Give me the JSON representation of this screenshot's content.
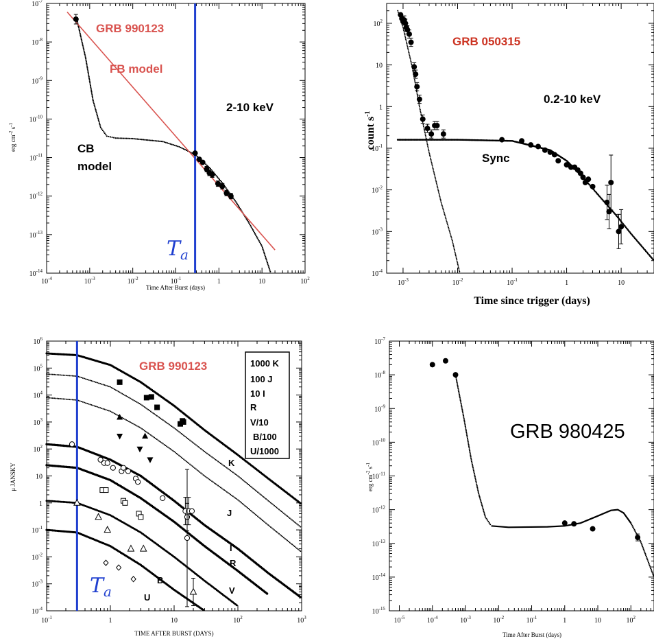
{
  "colors": {
    "red": "#d9534f",
    "blue": "#1f3fcf",
    "black": "#000000"
  },
  "panels": [
    {
      "title": "GRB 990123",
      "energy_label": "2-10 keV",
      "fb_label": "FB model",
      "cb_label_1": "CB",
      "cb_label_2": "model",
      "ta_label": "T",
      "ta_sub": "a",
      "xlabel": "Time After Burst (days)",
      "ylabel_main": "erg cm",
      "ylabel_exp1": "-2",
      "ylabel_mid": " s",
      "ylabel_exp2": "-1"
    },
    {
      "title": "GRB 050315",
      "energy_label": "0.2-10 keV",
      "sync_label": "Sync",
      "xlabel": "Time since trigger (days)",
      "ylabel_main": "count s",
      "ylabel_exp": "-1"
    },
    {
      "title": "GRB 990123",
      "legend": [
        "1000 K",
        "100 J",
        "10 I",
        "R",
        "V/10",
        "B/100",
        "U/1000"
      ],
      "band_labels": [
        "K",
        "J",
        "I",
        "R",
        "V",
        "B",
        "U"
      ],
      "ta_label": "T",
      "ta_sub": "a",
      "xlabel": "TIME AFTER BURST (DAYS)",
      "ylabel": "μ JANSKY"
    },
    {
      "title": "GRB 980425",
      "xlabel": "Time After Burst (days)",
      "ylabel_main": "erg cm",
      "ylabel_exp1": "-2",
      "ylabel_mid": " s",
      "ylabel_exp2": "-1"
    }
  ],
  "chart_data": [
    {
      "type": "scatter",
      "title": "GRB 990123",
      "xlabel": "Time After Burst (days)",
      "ylabel": "erg cm^-2 s^-1",
      "xscale": "log",
      "yscale": "log",
      "xlim": [
        0.0001,
        100
      ],
      "ylim": [
        1e-14,
        1e-07
      ],
      "xticks": [
        "10^-4",
        "10^-3",
        "10^-2",
        "10^-1",
        "1",
        "10",
        "10^2"
      ],
      "yticks": [
        "10^-7",
        "10^-8",
        "10^-9",
        "10^-10",
        "10^-11",
        "10^-12",
        "10^-13",
        "10^-14"
      ],
      "energy_band": "2-10 keV",
      "t_a_days": 0.28,
      "points": [
        {
          "x": 0.00048,
          "y": 3.9e-08
        },
        {
          "x": 0.28,
          "y": 1.3e-11
        },
        {
          "x": 0.35,
          "y": 9e-12
        },
        {
          "x": 0.42,
          "y": 7.5e-12
        },
        {
          "x": 0.52,
          "y": 5e-12
        },
        {
          "x": 0.6,
          "y": 4e-12
        },
        {
          "x": 0.7,
          "y": 3.6e-12
        },
        {
          "x": 0.95,
          "y": 2.1e-12
        },
        {
          "x": 1.2,
          "y": 1.8e-12
        },
        {
          "x": 1.5,
          "y": 1.2e-12
        },
        {
          "x": 1.9,
          "y": 1e-12
        }
      ],
      "fb_model_line": [
        [
          0.0003,
          6e-08
        ],
        [
          20,
          4e-14
        ]
      ],
      "cb_model_curve": [
        [
          0.0005,
          4e-08
        ],
        [
          0.0008,
          4e-09
        ],
        [
          0.0012,
          3e-10
        ],
        [
          0.0018,
          6e-11
        ],
        [
          0.0025,
          3.6e-11
        ],
        [
          0.004,
          3.2e-11
        ],
        [
          0.01,
          3.1e-11
        ],
        [
          0.05,
          2.6e-11
        ],
        [
          0.12,
          1.9e-11
        ],
        [
          0.28,
          1.2e-11
        ],
        [
          0.6,
          5.5e-12
        ],
        [
          1.2,
          2.2e-12
        ],
        [
          2.5,
          7e-13
        ],
        [
          5,
          2e-13
        ],
        [
          10,
          5e-14
        ],
        [
          16,
          1e-14
        ]
      ]
    },
    {
      "type": "scatter",
      "title": "GRB 050315",
      "xlabel": "Time since trigger (days)",
      "ylabel": "count s^-1",
      "xscale": "log",
      "yscale": "log",
      "xlim": [
        0.0005,
        40
      ],
      "ylim": [
        0.0001,
        300
      ],
      "xticks": [
        "10^-3",
        "10^-2",
        "10^-1",
        "1",
        "10"
      ],
      "yticks": [
        "10^2",
        "10",
        "1",
        "10^-1",
        "10^-2",
        "10^-3",
        "10^-4"
      ],
      "energy_band": "0.2-10 keV",
      "points": [
        {
          "x": 0.0009,
          "y": 160
        },
        {
          "x": 0.00095,
          "y": 130
        },
        {
          "x": 0.001,
          "y": 110
        },
        {
          "x": 0.00105,
          "y": 120
        },
        {
          "x": 0.0011,
          "y": 100
        },
        {
          "x": 0.00115,
          "y": 80
        },
        {
          "x": 0.0012,
          "y": 70
        },
        {
          "x": 0.0013,
          "y": 55
        },
        {
          "x": 0.0014,
          "y": 35
        },
        {
          "x": 0.0016,
          "y": 9
        },
        {
          "x": 0.0017,
          "y": 6
        },
        {
          "x": 0.0018,
          "y": 3
        },
        {
          "x": 0.002,
          "y": 1.5
        },
        {
          "x": 0.0023,
          "y": 0.5
        },
        {
          "x": 0.0028,
          "y": 0.3
        },
        {
          "x": 0.0033,
          "y": 0.22
        },
        {
          "x": 0.0038,
          "y": 0.35
        },
        {
          "x": 0.0042,
          "y": 0.35
        },
        {
          "x": 0.0055,
          "y": 0.22
        },
        {
          "x": 0.065,
          "y": 0.16
        },
        {
          "x": 0.15,
          "y": 0.15
        },
        {
          "x": 0.22,
          "y": 0.12
        },
        {
          "x": 0.3,
          "y": 0.11
        },
        {
          "x": 0.4,
          "y": 0.09
        },
        {
          "x": 0.5,
          "y": 0.08
        },
        {
          "x": 0.6,
          "y": 0.07
        },
        {
          "x": 0.7,
          "y": 0.05
        },
        {
          "x": 1.0,
          "y": 0.04
        },
        {
          "x": 1.2,
          "y": 0.035
        },
        {
          "x": 1.4,
          "y": 0.035
        },
        {
          "x": 1.6,
          "y": 0.03
        },
        {
          "x": 1.8,
          "y": 0.025
        },
        {
          "x": 2.0,
          "y": 0.02
        },
        {
          "x": 2.2,
          "y": 0.015
        },
        {
          "x": 2.5,
          "y": 0.018
        },
        {
          "x": 3.0,
          "y": 0.012
        },
        {
          "x": 5.5,
          "y": 0.005
        },
        {
          "x": 6.0,
          "y": 0.003
        },
        {
          "x": 6.5,
          "y": 0.015
        },
        {
          "x": 9.0,
          "y": 0.001
        },
        {
          "x": 10,
          "y": 0.0013
        }
      ],
      "prompt_curve": [
        [
          0.0008,
          200
        ],
        [
          0.001,
          80
        ],
        [
          0.0015,
          8
        ],
        [
          0.002,
          1
        ],
        [
          0.003,
          0.08
        ],
        [
          0.005,
          0.005
        ],
        [
          0.008,
          0.0006
        ],
        [
          0.011,
          0.0001
        ]
      ],
      "sync_curve": [
        [
          0.0008,
          0.16
        ],
        [
          0.01,
          0.16
        ],
        [
          0.1,
          0.15
        ],
        [
          0.5,
          0.09
        ],
        [
          1,
          0.05
        ],
        [
          2,
          0.02
        ],
        [
          4,
          0.007
        ],
        [
          8,
          0.0025
        ],
        [
          15,
          0.0009
        ],
        [
          40,
          0.0002
        ]
      ]
    },
    {
      "type": "scatter",
      "title": "GRB 990123",
      "xlabel": "TIME AFTER BURST (DAYS)",
      "ylabel": "μ JANSKY",
      "xscale": "log",
      "yscale": "log",
      "xlim": [
        0.1,
        1000
      ],
      "ylim": [
        0.0001,
        1000000
      ],
      "xticks": [
        "10^-1",
        "1",
        "10",
        "10^2",
        "10^3"
      ],
      "yticks": [
        "10^6",
        "10^5",
        "10^4",
        "10^3",
        "10^2",
        "10",
        "1",
        "10^-1",
        "10^-2",
        "10^-3",
        "10^-4"
      ],
      "t_a_days": 0.3,
      "series": [
        {
          "name": "1000 K",
          "marker": "filled-square",
          "points": [
            [
              1.4,
              30000
            ],
            [
              3.7,
              8000
            ],
            [
              4.4,
              8500
            ],
            [
              5.4,
              3500
            ],
            [
              12.5,
              850
            ],
            [
              13.5,
              1100
            ],
            [
              14,
              1000
            ]
          ],
          "curve": [
            [
              0.1,
              350000
            ],
            [
              0.3,
              300000
            ],
            [
              1,
              130000
            ],
            [
              3,
              30000
            ],
            [
              10,
              4000
            ],
            [
              30,
              500
            ],
            [
              100,
              60
            ],
            [
              300,
              8
            ],
            [
              1000,
              0.9
            ]
          ]
        },
        {
          "name": "100 J",
          "marker": "filled-triangle",
          "points": [
            [
              1.4,
              1500
            ],
            [
              3.5,
              300
            ]
          ],
          "curve": [
            [
              0.1,
              60000
            ],
            [
              0.3,
              50000
            ],
            [
              1,
              20000
            ],
            [
              3,
              4500
            ],
            [
              10,
              600
            ],
            [
              30,
              80
            ],
            [
              100,
              10
            ],
            [
              300,
              1.2
            ],
            [
              1000,
              0.12
            ]
          ]
        },
        {
          "name": "10 I",
          "marker": "filled-down-triangle",
          "points": [
            [
              1.4,
              300
            ],
            [
              2.9,
              100
            ],
            [
              4.2,
              40
            ]
          ],
          "curve": [
            [
              0.1,
              8000
            ],
            [
              0.3,
              6500
            ],
            [
              1,
              2500
            ],
            [
              3,
              600
            ],
            [
              10,
              80
            ],
            [
              30,
              10
            ],
            [
              100,
              1.3
            ],
            [
              300,
              0.15
            ],
            [
              1000,
              0.015
            ]
          ]
        },
        {
          "name": "R",
          "marker": "open-circle",
          "points": [
            [
              0.25,
              150
            ],
            [
              0.7,
              40
            ],
            [
              0.8,
              30
            ],
            [
              0.9,
              30
            ],
            [
              1.1,
              20
            ],
            [
              1.5,
              15
            ],
            [
              1.6,
              20
            ],
            [
              1.9,
              15
            ],
            [
              2.5,
              8
            ],
            [
              2.7,
              6
            ],
            [
              6.6,
              1.5
            ],
            [
              15,
              0.5
            ],
            [
              16,
              0.3
            ],
            [
              17,
              0.5
            ],
            [
              19,
              0.5
            ],
            [
              16,
              0.05
            ]
          ],
          "curve": [
            [
              0.1,
              150
            ],
            [
              0.3,
              120
            ],
            [
              1,
              40
            ],
            [
              3,
              10
            ],
            [
              10,
              1.2
            ],
            [
              30,
              0.15
            ],
            [
              100,
              0.02
            ],
            [
              300,
              0.0025
            ],
            [
              1000,
              0.0003
            ]
          ]
        },
        {
          "name": "V/10",
          "marker": "open-square",
          "points": [
            [
              0.75,
              3
            ],
            [
              0.85,
              3
            ],
            [
              1.6,
              1.2
            ],
            [
              1.7,
              1
            ],
            [
              2.8,
              0.4
            ],
            [
              3.0,
              0.3
            ]
          ],
          "curve": [
            [
              0.1,
              25
            ],
            [
              0.3,
              20
            ],
            [
              1,
              7
            ],
            [
              3,
              1.5
            ],
            [
              10,
              0.2
            ],
            [
              30,
              0.025
            ],
            [
              100,
              0.003
            ],
            [
              300,
              0.0004
            ]
          ]
        },
        {
          "name": "B/100",
          "marker": "open-triangle",
          "points": [
            [
              0.3,
              1
            ],
            [
              0.65,
              0.3
            ],
            [
              0.9,
              0.1
            ],
            [
              2.1,
              0.02
            ],
            [
              3.3,
              0.02
            ],
            [
              20,
              0.0005
            ]
          ],
          "curve": [
            [
              0.1,
              1.2
            ],
            [
              0.3,
              1
            ],
            [
              1,
              0.35
            ],
            [
              3,
              0.08
            ],
            [
              10,
              0.01
            ],
            [
              30,
              0.0013
            ],
            [
              100,
              0.00015
            ]
          ]
        },
        {
          "name": "U/1000",
          "marker": "open-diamond",
          "points": [
            [
              0.85,
              0.006
            ],
            [
              1.35,
              0.004
            ],
            [
              2.3,
              0.0015
            ]
          ],
          "curve": [
            [
              0.1,
              0.1
            ],
            [
              0.3,
              0.08
            ],
            [
              1,
              0.025
            ],
            [
              3,
              0.005
            ],
            [
              10,
              0.0006
            ],
            [
              30,
              0.0001
            ]
          ]
        }
      ]
    },
    {
      "type": "scatter",
      "title": "GRB 980425",
      "xlabel": "Time After Burst (days)",
      "ylabel": "erg cm^-2 s^-1",
      "xscale": "log",
      "yscale": "log",
      "xlim": [
        5e-06,
        500
      ],
      "ylim": [
        1e-15,
        1e-07
      ],
      "xticks": [
        "10^-5",
        "10^-4",
        "10^-3",
        "10^-2",
        "10^-1",
        "1",
        "10",
        "10^2"
      ],
      "yticks": [
        "10^-7",
        "10^-8",
        "10^-9",
        "10^-10",
        "10^-11",
        "10^-12",
        "10^-13",
        "10^-14",
        "10^-15"
      ],
      "points": [
        {
          "x": 0.0001,
          "y": 2e-08
        },
        {
          "x": 0.00025,
          "y": 2.6e-08
        },
        {
          "x": 0.0005,
          "y": 1e-08
        },
        {
          "x": 1.0,
          "y": 4e-13
        },
        {
          "x": 1.9,
          "y": 3.8e-13
        },
        {
          "x": 7.0,
          "y": 2.7e-13
        },
        {
          "x": 160,
          "y": 1.5e-13
        }
      ],
      "cb_curve": [
        [
          0.0005,
          1e-08
        ],
        [
          0.0009,
          5e-10
        ],
        [
          0.0015,
          3e-11
        ],
        [
          0.0025,
          3e-12
        ],
        [
          0.004,
          6e-13
        ],
        [
          0.006,
          3.3e-13
        ],
        [
          0.02,
          3e-13
        ],
        [
          0.3,
          3.1e-13
        ],
        [
          1,
          3.3e-13
        ],
        [
          3,
          4e-13
        ],
        [
          10,
          6.5e-13
        ],
        [
          25,
          9.5e-13
        ],
        [
          40,
          1e-12
        ],
        [
          60,
          8e-13
        ],
        [
          100,
          4e-13
        ],
        [
          200,
          1.1e-13
        ],
        [
          500,
          1e-14
        ]
      ]
    }
  ]
}
